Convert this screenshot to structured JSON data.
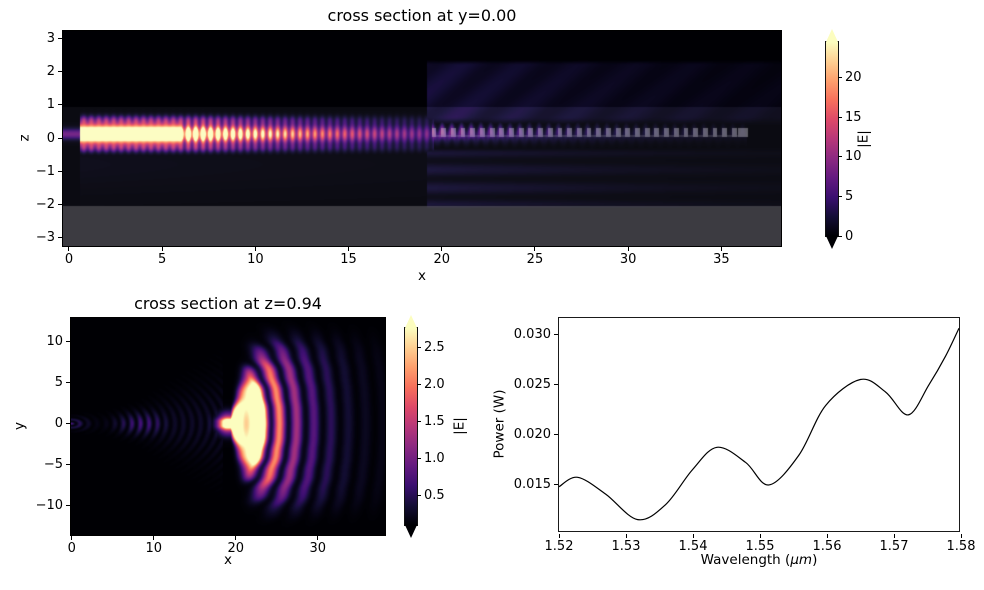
{
  "figure": {
    "background": "#ffffff"
  },
  "colormap": {
    "name": "magma",
    "stops": [
      [
        0.0,
        "#000004"
      ],
      [
        0.1,
        "#140e36"
      ],
      [
        0.2,
        "#3b0f70"
      ],
      [
        0.3,
        "#641a80"
      ],
      [
        0.4,
        "#8c2981"
      ],
      [
        0.5,
        "#b73779"
      ],
      [
        0.6,
        "#de4968"
      ],
      [
        0.7,
        "#f7705c"
      ],
      [
        0.8,
        "#fe9f6d"
      ],
      [
        0.9,
        "#fecf92"
      ],
      [
        1.0,
        "#fcfdbf"
      ]
    ]
  },
  "chart_data": [
    {
      "type": "heatmap",
      "title": "cross section at y=0.00",
      "xlabel": "x",
      "ylabel": "z",
      "xlim": [
        -0.32,
        38.2
      ],
      "ylim": [
        -3.27,
        3.24
      ],
      "xtick_values": [
        0,
        5,
        10,
        15,
        20,
        25,
        30,
        35
      ],
      "xtick_labels": [
        "0",
        "5",
        "10",
        "15",
        "20",
        "25",
        "30",
        "35"
      ],
      "ytick_values": [
        3,
        2,
        1,
        0,
        -1,
        -2,
        -3
      ],
      "ytick_labels": [
        "3",
        "2",
        "1",
        "0",
        "−1",
        "−2",
        "−3"
      ],
      "grid": false,
      "colorbar": {
        "label": "|E|",
        "vmin": 0,
        "vmax": 24.5,
        "tick_values": [
          0,
          5,
          10,
          15,
          20
        ],
        "tick_labels": [
          "0",
          "5",
          "10",
          "15",
          "20"
        ],
        "extend": "both"
      },
      "features": {
        "source_span_x": [
          -0.33,
          0.65
        ],
        "beam_center_z": 0.12,
        "waveguide_start_x": 0.6,
        "grating_start_x": 19.5,
        "grating_end_x": 36.4,
        "grating_tooth_period": 0.52,
        "oxide_top_z": 0.95,
        "substrate_top_z": -2.07,
        "description": "Guided mode |E| propagating along z≈0.1 from x≈0.6, saturated bright near the input and decaying with x; periodic grating section from x≈19.5 to 36.4 (gray teeth overlay) scatters light upward into a purple haze between z≈0.35 and z≈2.3 and weakly downward; uniform gray overlay marks the substrate below z≈−2.07."
      }
    },
    {
      "type": "heatmap",
      "title": "cross section at z=0.94",
      "xlabel": "x",
      "ylabel": "y",
      "xlim": [
        -0.09,
        38.2
      ],
      "ylim": [
        -13.6,
        12.9
      ],
      "xtick_values": [
        0,
        10,
        20,
        30
      ],
      "xtick_labels": [
        "0",
        "10",
        "20",
        "30"
      ],
      "ytick_values": [
        10,
        5,
        0,
        -5,
        -10
      ],
      "ytick_labels": [
        "10",
        "5",
        "0",
        "−5",
        "−10"
      ],
      "grid": false,
      "colorbar": {
        "label": "|E|",
        "vmin": 0.1,
        "vmax": 2.77,
        "tick_values": [
          2.5,
          2.0,
          1.5,
          1.0,
          0.5
        ],
        "tick_labels": [
          "2.5",
          "2.0",
          "1.5",
          "1.0",
          "0.5"
        ],
        "extend": "both"
      },
      "features": {
        "input_fringe_spacing": 1.05,
        "focus_center": [
          19.0,
          0.0
        ],
        "bright_core_radius": 4.3,
        "ring_spacing": 2.1,
        "description": "Faint beaded interference fringes along y≈0 for x≲17, then a bright saturated lobe centered near x≈19–26 spanning |y|≲5, surrounded by concentric diffraction arcs (convex toward +x) extending to x≈38 with a dark arc near x≈34."
      }
    },
    {
      "type": "line",
      "title": "",
      "xlabel_prefix": "Wavelength (",
      "xlabel_unit": "μm",
      "xlabel_suffix": ")",
      "ylabel": "Power (W)",
      "xlim": [
        1.52,
        1.58
      ],
      "ylim": [
        0.01013,
        0.03163
      ],
      "xtick_values": [
        1.52,
        1.53,
        1.54,
        1.55,
        1.56,
        1.57,
        1.58
      ],
      "xtick_labels": [
        "1.52",
        "1.53",
        "1.54",
        "1.55",
        "1.56",
        "1.57",
        "1.58"
      ],
      "ytick_values": [
        0.015,
        0.02,
        0.025,
        0.03
      ],
      "ytick_labels": [
        "0.015",
        "0.020",
        "0.025",
        "0.030"
      ],
      "line_color": "#000000",
      "grid": false,
      "series": {
        "x": [
          1.52,
          1.5228,
          1.527,
          1.5318,
          1.536,
          1.54,
          1.5437,
          1.548,
          1.5515,
          1.556,
          1.56,
          1.5652,
          1.569,
          1.5724,
          1.5755,
          1.578,
          1.58
        ],
        "y": [
          0.0146,
          0.01555,
          0.01385,
          0.01128,
          0.0128,
          0.0163,
          0.01858,
          0.01705,
          0.01478,
          0.0178,
          0.0228,
          0.02542,
          0.02415,
          0.02185,
          0.0249,
          0.0278,
          0.0306
        ]
      }
    }
  ]
}
